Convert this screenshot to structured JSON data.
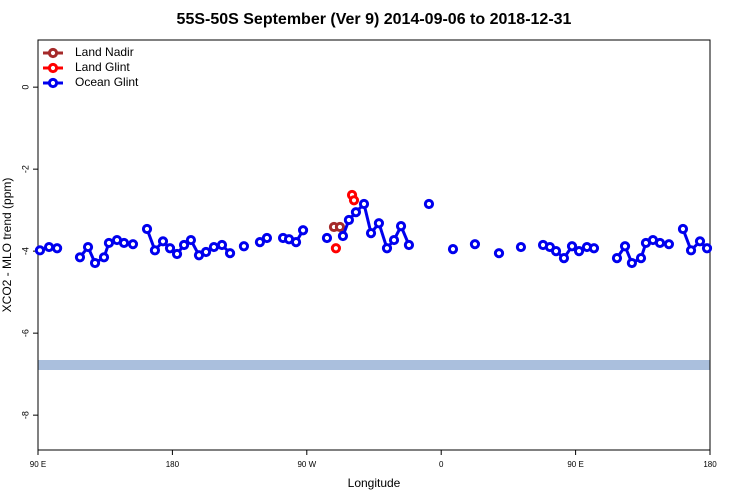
{
  "chart_data": {
    "type": "line",
    "title": "55S-50S September (Ver 9)   2014-09-06 to 2018-12-31",
    "x_label": "Longitude",
    "y_label": "XCO2 - MLO trend (ppm)",
    "xlim": [
      90,
      540
    ],
    "ylim": [
      -8.85,
      1.15
    ],
    "xticks": [
      {
        "value": 90,
        "label": "90 E"
      },
      180,
      {
        "value": 270,
        "label": "90 W"
      },
      {
        "value": 360,
        "label": "0"
      },
      {
        "value": 450,
        "label": "90 E"
      },
      {
        "value": 540,
        "label": "180"
      }
    ],
    "yticks": [
      0,
      -2,
      -4,
      -6,
      -8
    ],
    "legend": "top-left",
    "series": [
      {
        "name": "Land Nadir",
        "color": "#a52a2a",
        "x": [
          288.2,
          292.2
        ],
        "values": [
          -3.41,
          -3.41
        ]
      },
      {
        "name": "Land Glint",
        "color": "#ff0000",
        "x": [
          300.3,
          301.6,
          null,
          289.5
        ],
        "values": [
          -2.63,
          -2.76,
          null,
          -3.93
        ]
      },
      {
        "name": "Ocean Glint",
        "color": "#0000ee",
        "x": [
          91.3,
          97.4,
          102.8,
          null,
          118.1,
          123.5,
          128.2,
          134.2,
          137.5,
          142.9,
          147.6,
          153.6,
          null,
          163.0,
          168.3,
          173.7,
          178.4,
          183.1,
          187.8,
          192.4,
          197.8,
          202.5,
          207.8,
          213.2,
          218.6,
          null,
          227.9,
          null,
          238.6,
          243.3,
          null,
          254.1,
          258.1,
          262.8,
          267.5,
          null,
          283.5,
          null,
          294.2,
          298.2,
          302.9,
          308.3,
          313.0,
          318.3,
          323.7,
          328.4,
          333.1,
          338.4,
          null,
          351.8,
          null,
          367.9,
          null,
          382.6,
          null,
          398.7,
          null,
          413.4,
          null,
          428.2,
          432.8,
          436.9,
          442.2,
          447.6,
          452.3,
          457.6,
          462.3,
          null,
          477.7,
          483.1,
          487.7,
          493.8,
          497.1,
          501.8,
          506.5,
          512.5,
          null,
          521.9,
          527.3,
          533.3,
          538.0
        ],
        "values": [
          -3.98,
          -3.9,
          -3.93,
          null,
          -4.15,
          -3.9,
          -4.29,
          -4.15,
          -3.8,
          -3.73,
          -3.8,
          -3.83,
          null,
          -3.46,
          -3.98,
          -3.76,
          -3.93,
          -4.07,
          -3.85,
          -3.73,
          -4.1,
          -4.02,
          -3.9,
          -3.85,
          -4.05,
          null,
          -3.88,
          null,
          -3.78,
          -3.68,
          null,
          -3.68,
          -3.71,
          -3.78,
          -3.49,
          null,
          -3.68,
          null,
          -3.63,
          -3.24,
          -3.05,
          -2.85,
          -3.56,
          -3.32,
          -3.93,
          -3.73,
          -3.39,
          -3.85,
          null,
          -2.85,
          null,
          -3.95,
          null,
          -3.83,
          null,
          -4.05,
          null,
          -3.9,
          null,
          -3.85,
          -3.9,
          -4.0,
          -4.17,
          -3.88,
          -4.0,
          -3.9,
          -3.93,
          null,
          -4.17,
          -3.88,
          -4.29,
          -4.17,
          -3.8,
          -3.73,
          -3.8,
          -3.83,
          null,
          -3.46,
          -3.98,
          -3.76,
          -3.93
        ]
      }
    ]
  }
}
